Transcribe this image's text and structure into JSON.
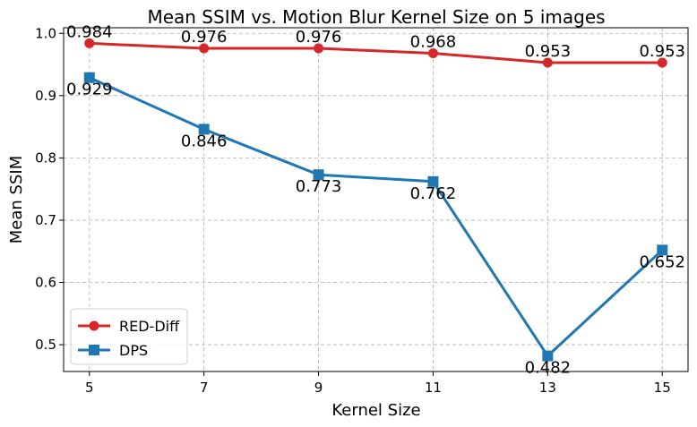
{
  "chart_data": {
    "type": "line",
    "title": "Mean SSIM vs. Motion Blur Kernel Size on 5 images",
    "xlabel": "Kernel Size",
    "ylabel": "Mean SSIM",
    "x": [
      5,
      7,
      9,
      11,
      13,
      15
    ],
    "xticks": [
      "5",
      "7",
      "9",
      "11",
      "13",
      "15"
    ],
    "yticks": [
      "0.5",
      "0.6",
      "0.7",
      "0.8",
      "0.9",
      "1.0"
    ],
    "xlim": [
      4.55,
      15.45
    ],
    "ylim": [
      0.457,
      1.009
    ],
    "grid": true,
    "legend_position": "lower-left",
    "series": [
      {
        "name": "RED-Diff",
        "color": "#d62728",
        "marker": "circle",
        "values": [
          0.984,
          0.976,
          0.976,
          0.968,
          0.953,
          0.953
        ],
        "labels": [
          "0.984",
          "0.976",
          "0.976",
          "0.968",
          "0.953",
          "0.953"
        ],
        "label_side": "above"
      },
      {
        "name": "DPS",
        "color": "#1f77b4",
        "marker": "square",
        "values": [
          0.929,
          0.846,
          0.773,
          0.762,
          0.482,
          0.652
        ],
        "labels": [
          "0.929",
          "0.846",
          "0.773",
          "0.762",
          "0.482",
          "0.652"
        ],
        "label_side": "below"
      }
    ]
  }
}
